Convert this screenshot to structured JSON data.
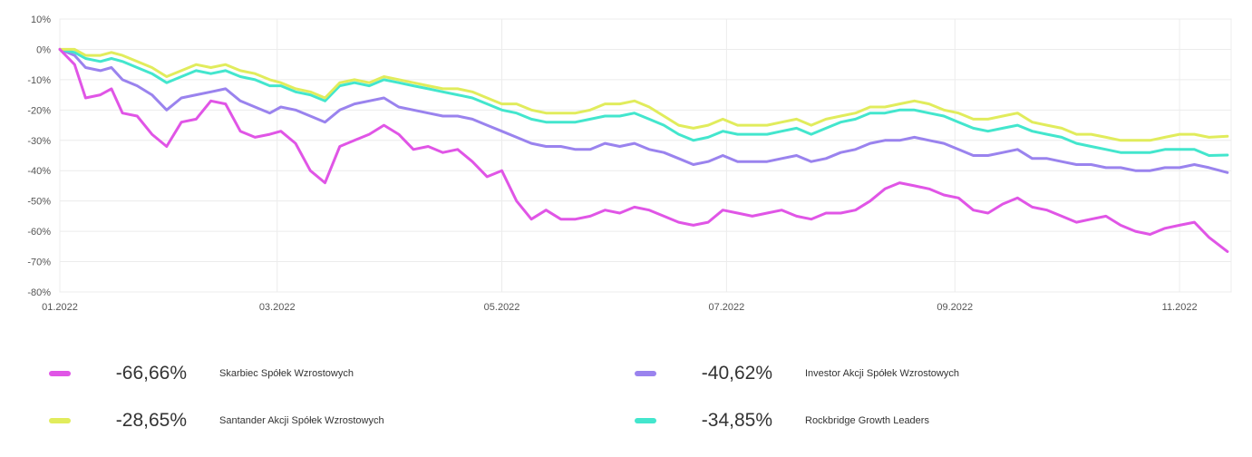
{
  "chart_data": {
    "type": "line",
    "title": "",
    "xlabel": "",
    "ylabel": "",
    "ylim": [
      -80,
      10
    ],
    "y_ticks": [
      10,
      0,
      -10,
      -20,
      -30,
      -40,
      -50,
      -60,
      -70,
      -80
    ],
    "y_tick_labels": [
      "10%",
      "0%",
      "-10%",
      "-20%",
      "-30%",
      "-40%",
      "-50%",
      "-60%",
      "-70%",
      "-80%"
    ],
    "x_ticks": [
      "2022-01-01",
      "2022-03-01",
      "2022-05-01",
      "2022-07-01",
      "2022-09-01",
      "2022-11-01"
    ],
    "x_tick_labels": [
      "01.2022",
      "03.2022",
      "05.2022",
      "07.2022",
      "09.2022",
      "11.2022"
    ],
    "xlim": [
      "2022-01-01",
      "2022-11-15"
    ],
    "grid": true,
    "legend_position": "bottom",
    "series": [
      {
        "name": "Skarbiec Spółek Wzrostowych",
        "final_value": "-66,66%",
        "color": "#e055e6",
        "x": [
          "2022-01-01",
          "2022-01-05",
          "2022-01-08",
          "2022-01-12",
          "2022-01-15",
          "2022-01-18",
          "2022-01-22",
          "2022-01-26",
          "2022-01-30",
          "2022-02-03",
          "2022-02-07",
          "2022-02-11",
          "2022-02-15",
          "2022-02-19",
          "2022-02-23",
          "2022-02-27",
          "2022-03-02",
          "2022-03-06",
          "2022-03-10",
          "2022-03-14",
          "2022-03-18",
          "2022-03-22",
          "2022-03-26",
          "2022-03-30",
          "2022-04-03",
          "2022-04-07",
          "2022-04-11",
          "2022-04-15",
          "2022-04-19",
          "2022-04-23",
          "2022-04-27",
          "2022-05-01",
          "2022-05-05",
          "2022-05-09",
          "2022-05-13",
          "2022-05-17",
          "2022-05-21",
          "2022-05-25",
          "2022-05-29",
          "2022-06-02",
          "2022-06-06",
          "2022-06-10",
          "2022-06-14",
          "2022-06-18",
          "2022-06-22",
          "2022-06-26",
          "2022-06-30",
          "2022-07-04",
          "2022-07-08",
          "2022-07-12",
          "2022-07-16",
          "2022-07-20",
          "2022-07-24",
          "2022-07-28",
          "2022-08-01",
          "2022-08-05",
          "2022-08-09",
          "2022-08-13",
          "2022-08-17",
          "2022-08-21",
          "2022-08-25",
          "2022-08-29",
          "2022-09-02",
          "2022-09-06",
          "2022-09-10",
          "2022-09-14",
          "2022-09-18",
          "2022-09-22",
          "2022-09-26",
          "2022-09-30",
          "2022-10-04",
          "2022-10-08",
          "2022-10-12",
          "2022-10-16",
          "2022-10-20",
          "2022-10-24",
          "2022-10-28",
          "2022-11-01",
          "2022-11-05",
          "2022-11-09",
          "2022-11-14"
        ],
        "values": [
          0,
          -5,
          -16,
          -15,
          -13,
          -21,
          -22,
          -28,
          -32,
          -24,
          -23,
          -17,
          -18,
          -27,
          -29,
          -28,
          -27,
          -31,
          -40,
          -44,
          -32,
          -30,
          -28,
          -25,
          -28,
          -33,
          -32,
          -34,
          -33,
          -37,
          -42,
          -40,
          -50,
          -56,
          -53,
          -56,
          -56,
          -55,
          -53,
          -54,
          -52,
          -53,
          -55,
          -57,
          -58,
          -57,
          -53,
          -54,
          -55,
          -54,
          -53,
          -55,
          -56,
          -54,
          -54,
          -53,
          -50,
          -46,
          -44,
          -45,
          -46,
          -48,
          -49,
          -53,
          -54,
          -51,
          -49,
          -52,
          -53,
          -55,
          -57,
          -56,
          -55,
          -58,
          -60,
          -61,
          -59,
          -58,
          -57,
          -62,
          -66.66
        ]
      },
      {
        "name": "Investor Akcji Spółek Wzrostowych",
        "final_value": "-40,62%",
        "color": "#9a83ee",
        "x": [
          "2022-01-01",
          "2022-01-05",
          "2022-01-08",
          "2022-01-12",
          "2022-01-15",
          "2022-01-18",
          "2022-01-22",
          "2022-01-26",
          "2022-01-30",
          "2022-02-03",
          "2022-02-07",
          "2022-02-11",
          "2022-02-15",
          "2022-02-19",
          "2022-02-23",
          "2022-02-27",
          "2022-03-02",
          "2022-03-06",
          "2022-03-10",
          "2022-03-14",
          "2022-03-18",
          "2022-03-22",
          "2022-03-26",
          "2022-03-30",
          "2022-04-03",
          "2022-04-07",
          "2022-04-11",
          "2022-04-15",
          "2022-04-19",
          "2022-04-23",
          "2022-04-27",
          "2022-05-01",
          "2022-05-05",
          "2022-05-09",
          "2022-05-13",
          "2022-05-17",
          "2022-05-21",
          "2022-05-25",
          "2022-05-29",
          "2022-06-02",
          "2022-06-06",
          "2022-06-10",
          "2022-06-14",
          "2022-06-18",
          "2022-06-22",
          "2022-06-26",
          "2022-06-30",
          "2022-07-04",
          "2022-07-08",
          "2022-07-12",
          "2022-07-16",
          "2022-07-20",
          "2022-07-24",
          "2022-07-28",
          "2022-08-01",
          "2022-08-05",
          "2022-08-09",
          "2022-08-13",
          "2022-08-17",
          "2022-08-21",
          "2022-08-25",
          "2022-08-29",
          "2022-09-02",
          "2022-09-06",
          "2022-09-10",
          "2022-09-14",
          "2022-09-18",
          "2022-09-22",
          "2022-09-26",
          "2022-09-30",
          "2022-10-04",
          "2022-10-08",
          "2022-10-12",
          "2022-10-16",
          "2022-10-20",
          "2022-10-24",
          "2022-10-28",
          "2022-11-01",
          "2022-11-05",
          "2022-11-09",
          "2022-11-14"
        ],
        "values": [
          0,
          -2,
          -6,
          -7,
          -6,
          -10,
          -12,
          -15,
          -20,
          -16,
          -15,
          -14,
          -13,
          -17,
          -19,
          -21,
          -19,
          -20,
          -22,
          -24,
          -20,
          -18,
          -17,
          -16,
          -19,
          -20,
          -21,
          -22,
          -22,
          -23,
          -25,
          -27,
          -29,
          -31,
          -32,
          -32,
          -33,
          -33,
          -31,
          -32,
          -31,
          -33,
          -34,
          -36,
          -38,
          -37,
          -35,
          -37,
          -37,
          -37,
          -36,
          -35,
          -37,
          -36,
          -34,
          -33,
          -31,
          -30,
          -30,
          -29,
          -30,
          -31,
          -33,
          -35,
          -35,
          -34,
          -33,
          -36,
          -36,
          -37,
          -38,
          -38,
          -39,
          -39,
          -40,
          -40,
          -39,
          -39,
          -38,
          -39,
          -40.62
        ]
      },
      {
        "name": "Santander Akcji Spółek Wzrostowych",
        "final_value": "-28,65%",
        "color": "#e1ec5c",
        "x": [
          "2022-01-01",
          "2022-01-05",
          "2022-01-08",
          "2022-01-12",
          "2022-01-15",
          "2022-01-18",
          "2022-01-22",
          "2022-01-26",
          "2022-01-30",
          "2022-02-03",
          "2022-02-07",
          "2022-02-11",
          "2022-02-15",
          "2022-02-19",
          "2022-02-23",
          "2022-02-27",
          "2022-03-02",
          "2022-03-06",
          "2022-03-10",
          "2022-03-14",
          "2022-03-18",
          "2022-03-22",
          "2022-03-26",
          "2022-03-30",
          "2022-04-03",
          "2022-04-07",
          "2022-04-11",
          "2022-04-15",
          "2022-04-19",
          "2022-04-23",
          "2022-04-27",
          "2022-05-01",
          "2022-05-05",
          "2022-05-09",
          "2022-05-13",
          "2022-05-17",
          "2022-05-21",
          "2022-05-25",
          "2022-05-29",
          "2022-06-02",
          "2022-06-06",
          "2022-06-10",
          "2022-06-14",
          "2022-06-18",
          "2022-06-22",
          "2022-06-26",
          "2022-06-30",
          "2022-07-04",
          "2022-07-08",
          "2022-07-12",
          "2022-07-16",
          "2022-07-20",
          "2022-07-24",
          "2022-07-28",
          "2022-08-01",
          "2022-08-05",
          "2022-08-09",
          "2022-08-13",
          "2022-08-17",
          "2022-08-21",
          "2022-08-25",
          "2022-08-29",
          "2022-09-02",
          "2022-09-06",
          "2022-09-10",
          "2022-09-14",
          "2022-09-18",
          "2022-09-22",
          "2022-09-26",
          "2022-09-30",
          "2022-10-04",
          "2022-10-08",
          "2022-10-12",
          "2022-10-16",
          "2022-10-20",
          "2022-10-24",
          "2022-10-28",
          "2022-11-01",
          "2022-11-05",
          "2022-11-09",
          "2022-11-14"
        ],
        "values": [
          0,
          0,
          -2,
          -2,
          -1,
          -2,
          -4,
          -6,
          -9,
          -7,
          -5,
          -6,
          -5,
          -7,
          -8,
          -10,
          -11,
          -13,
          -14,
          -16,
          -11,
          -10,
          -11,
          -9,
          -10,
          -11,
          -12,
          -13,
          -13,
          -14,
          -16,
          -18,
          -18,
          -20,
          -21,
          -21,
          -21,
          -20,
          -18,
          -18,
          -17,
          -19,
          -22,
          -25,
          -26,
          -25,
          -23,
          -25,
          -25,
          -25,
          -24,
          -23,
          -25,
          -23,
          -22,
          -21,
          -19,
          -19,
          -18,
          -17,
          -18,
          -20,
          -21,
          -23,
          -23,
          -22,
          -21,
          -24,
          -25,
          -26,
          -28,
          -28,
          -29,
          -30,
          -30,
          -30,
          -29,
          -28,
          -28,
          -29,
          -28.65
        ]
      },
      {
        "name": "Rockbridge Growth Leaders",
        "final_value": "-34,85%",
        "color": "#43e6cd",
        "x": [
          "2022-01-01",
          "2022-01-05",
          "2022-01-08",
          "2022-01-12",
          "2022-01-15",
          "2022-01-18",
          "2022-01-22",
          "2022-01-26",
          "2022-01-30",
          "2022-02-03",
          "2022-02-07",
          "2022-02-11",
          "2022-02-15",
          "2022-02-19",
          "2022-02-23",
          "2022-02-27",
          "2022-03-02",
          "2022-03-06",
          "2022-03-10",
          "2022-03-14",
          "2022-03-18",
          "2022-03-22",
          "2022-03-26",
          "2022-03-30",
          "2022-04-03",
          "2022-04-07",
          "2022-04-11",
          "2022-04-15",
          "2022-04-19",
          "2022-04-23",
          "2022-04-27",
          "2022-05-01",
          "2022-05-05",
          "2022-05-09",
          "2022-05-13",
          "2022-05-17",
          "2022-05-21",
          "2022-05-25",
          "2022-05-29",
          "2022-06-02",
          "2022-06-06",
          "2022-06-10",
          "2022-06-14",
          "2022-06-18",
          "2022-06-22",
          "2022-06-26",
          "2022-06-30",
          "2022-07-04",
          "2022-07-08",
          "2022-07-12",
          "2022-07-16",
          "2022-07-20",
          "2022-07-24",
          "2022-07-28",
          "2022-08-01",
          "2022-08-05",
          "2022-08-09",
          "2022-08-13",
          "2022-08-17",
          "2022-08-21",
          "2022-08-25",
          "2022-08-29",
          "2022-09-02",
          "2022-09-06",
          "2022-09-10",
          "2022-09-14",
          "2022-09-18",
          "2022-09-22",
          "2022-09-26",
          "2022-09-30",
          "2022-10-04",
          "2022-10-08",
          "2022-10-12",
          "2022-10-16",
          "2022-10-20",
          "2022-10-24",
          "2022-10-28",
          "2022-11-01",
          "2022-11-05",
          "2022-11-09",
          "2022-11-14"
        ],
        "values": [
          0,
          -1,
          -3,
          -4,
          -3,
          -4,
          -6,
          -8,
          -11,
          -9,
          -7,
          -8,
          -7,
          -9,
          -10,
          -12,
          -12,
          -14,
          -15,
          -17,
          -12,
          -11,
          -12,
          -10,
          -11,
          -12,
          -13,
          -14,
          -15,
          -16,
          -18,
          -20,
          -21,
          -23,
          -24,
          -24,
          -24,
          -23,
          -22,
          -22,
          -21,
          -23,
          -25,
          -28,
          -30,
          -29,
          -27,
          -28,
          -28,
          -28,
          -27,
          -26,
          -28,
          -26,
          -24,
          -23,
          -21,
          -21,
          -20,
          -20,
          -21,
          -22,
          -24,
          -26,
          -27,
          -26,
          -25,
          -27,
          -28,
          -29,
          -31,
          -32,
          -33,
          -34,
          -34,
          -34,
          -33,
          -33,
          -33,
          -35,
          -34.85
        ]
      }
    ]
  },
  "legend": {
    "items": [
      {
        "value": "-66,66%",
        "name": "Skarbiec Spółek Wzrostowych",
        "color": "#e055e6"
      },
      {
        "value": "-40,62%",
        "name": "Investor Akcji Spółek Wzrostowych",
        "color": "#9a83ee"
      },
      {
        "value": "-28,65%",
        "name": "Santander Akcji Spółek Wzrostowych",
        "color": "#e1ec5c"
      },
      {
        "value": "-34,85%",
        "name": "Rockbridge Growth Leaders",
        "color": "#43e6cd"
      }
    ]
  }
}
